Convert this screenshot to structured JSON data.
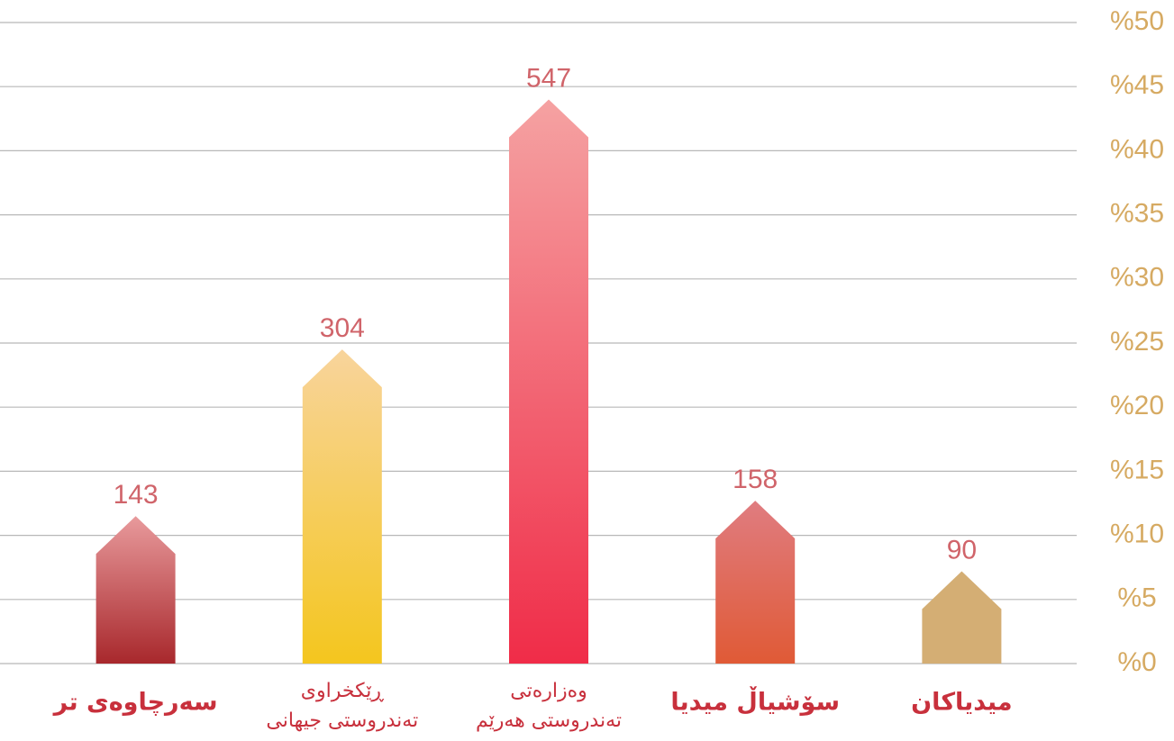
{
  "chart_data": {
    "type": "arrow-bar",
    "categories": [
      [
        "سەرچاوەی تر"
      ],
      [
        "ڕێکخراوی",
        "تەندروستی جیهانی"
      ],
      [
        "وەزارەتی",
        "تەندروستی هەرێم"
      ],
      [
        "سۆشیاڵ میدیا"
      ],
      [
        "میدیاکان"
      ]
    ],
    "values": [
      11.5,
      24.5,
      44.0,
      12.7,
      7.2
    ],
    "counts": [
      143,
      304,
      547,
      158,
      90
    ],
    "colors": [
      [
        "#e89a9c",
        "#a8282c"
      ],
      [
        "#f8d49c",
        "#f4c61e"
      ],
      [
        "#f5a2a2",
        "#f02c48"
      ],
      [
        "#e07c80",
        "#e05a36"
      ],
      [
        "#d4ae74",
        "#d4ae74"
      ]
    ],
    "ylim": [
      0,
      50
    ],
    "yticks": [
      {
        "value": 0,
        "label": "%0"
      },
      {
        "value": 5,
        "label": "%5"
      },
      {
        "value": 10,
        "label": "%10"
      },
      {
        "value": 15,
        "label": "%15"
      },
      {
        "value": 20,
        "label": "%20"
      },
      {
        "value": 25,
        "label": "%25"
      },
      {
        "value": 30,
        "label": "%30"
      },
      {
        "value": 35,
        "label": "%35"
      },
      {
        "value": 40,
        "label": "%40"
      },
      {
        "value": 45,
        "label": "%45"
      },
      {
        "value": 50,
        "label": "%50"
      }
    ],
    "grid": true
  }
}
